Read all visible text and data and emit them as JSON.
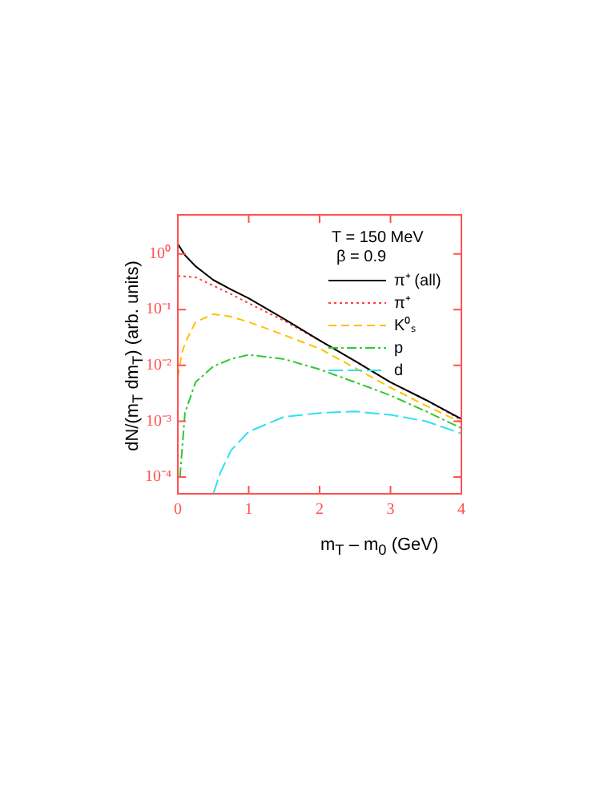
{
  "chart_data": {
    "type": "line",
    "xlabel": "m$_{T}$ – m$_{0}$ (GeV)",
    "ylabel": "dN/(m$_{T}$ dm$_{T}$) (arb. units)",
    "log": "y",
    "xlim": [
      0,
      4
    ],
    "xticks": [
      0,
      1,
      2,
      3,
      4
    ],
    "ylim": [
      5e-05,
      5
    ],
    "yticks": [
      {
        "value": 1,
        "label": "10⁰"
      },
      {
        "value": 0.1,
        "label": "10⁻¹"
      },
      {
        "value": 0.01,
        "label": "10⁻²"
      },
      {
        "value": 0.001,
        "label": "10⁻³"
      },
      {
        "value": 0.0001,
        "label": "10⁻⁴"
      }
    ],
    "grid": false,
    "legend": "top right",
    "marker": "none",
    "annotations": [
      "T = 150 MeV",
      "β = 0.9"
    ],
    "series": [
      {
        "name": "π⁺ (all)",
        "color": "#000000",
        "line_style": "solid",
        "x": [
          0,
          0.1,
          0.25,
          0.5,
          0.75,
          1,
          1.5,
          2,
          2.5,
          3,
          3.5,
          4
        ],
        "values": [
          1.5,
          0.95,
          0.6,
          0.34,
          0.23,
          0.16,
          0.068,
          0.028,
          0.012,
          0.005,
          0.0024,
          0.0011
        ]
      },
      {
        "name": "π⁺",
        "color": "#ff4040",
        "line_style": "dotted",
        "x": [
          0,
          0.25,
          0.5,
          0.75,
          1,
          1.5,
          2,
          2.5,
          3,
          3.5,
          4
        ],
        "values": [
          0.4,
          0.38,
          0.27,
          0.19,
          0.13,
          0.063,
          0.028,
          0.012,
          0.005,
          0.0024,
          0.00105
        ]
      },
      {
        "name": "K⁰ₛ",
        "color": "#ffc000",
        "line_style": "dashed",
        "x": [
          0,
          0.05,
          0.1,
          0.25,
          0.5,
          0.75,
          1,
          1.5,
          2,
          2.5,
          3,
          3.5,
          4
        ],
        "values": [
          0.006,
          0.015,
          0.025,
          0.06,
          0.083,
          0.075,
          0.06,
          0.035,
          0.02,
          0.009,
          0.004,
          0.0019,
          0.00095
        ]
      },
      {
        "name": "p",
        "color": "#30c830",
        "line_style": "dashdot",
        "x": [
          0.03,
          0.1,
          0.25,
          0.5,
          0.75,
          1,
          1.5,
          2,
          2.5,
          3,
          3.5,
          4
        ],
        "values": [
          0.0001,
          0.0014,
          0.005,
          0.0096,
          0.013,
          0.0155,
          0.013,
          0.0085,
          0.005,
          0.0029,
          0.0015,
          0.00075
        ]
      },
      {
        "name": "d",
        "color": "#30e0f0",
        "line_style": "longdash",
        "x": [
          0.5,
          0.6,
          0.75,
          1,
          1.5,
          2,
          2.5,
          3,
          3.5,
          4
        ],
        "values": [
          5e-05,
          0.00012,
          0.0003,
          0.00065,
          0.0012,
          0.0014,
          0.0015,
          0.0013,
          0.001,
          0.0006
        ]
      }
    ]
  }
}
